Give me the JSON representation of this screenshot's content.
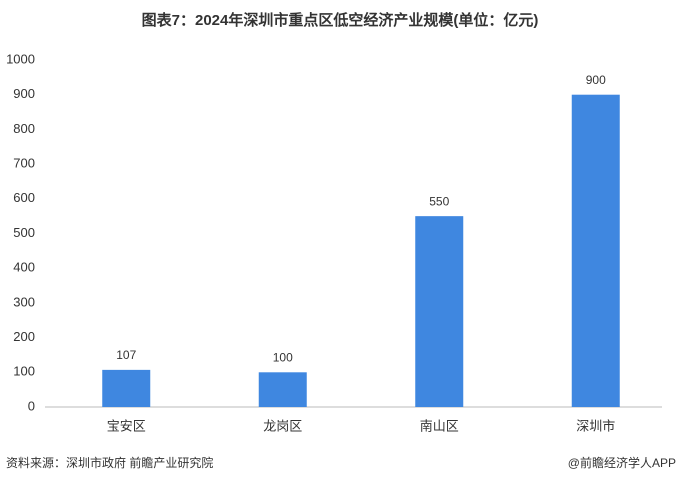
{
  "chart_data": {
    "type": "bar",
    "title": "图表7：2024年深圳市重点区低空经济产业规模(单位：亿元)",
    "categories": [
      "宝安区",
      "龙岗区",
      "南山区",
      "深圳市"
    ],
    "values": [
      107,
      100,
      550,
      900
    ],
    "color": "#3f87e0",
    "ylim": [
      0,
      1000
    ],
    "yticks": [
      0,
      100,
      200,
      300,
      400,
      500,
      600,
      700,
      800,
      900,
      1000
    ],
    "grid": false,
    "source": "资料来源：深圳市政府 前瞻产业研究院",
    "credit": "@前瞻经济学人APP"
  }
}
